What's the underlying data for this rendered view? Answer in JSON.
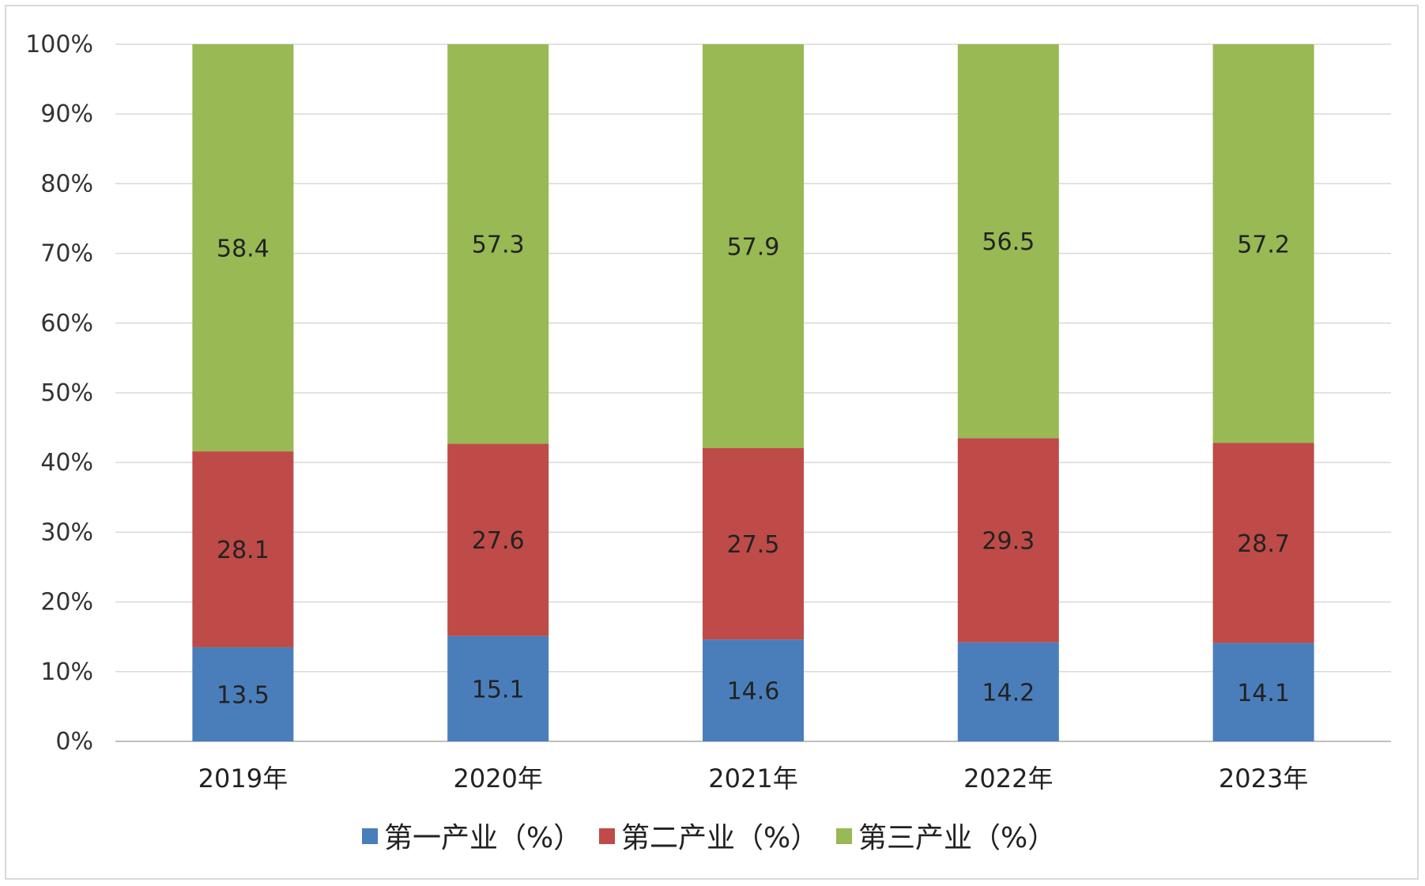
{
  "chart_data": {
    "type": "bar",
    "stacked": true,
    "percent_stacked": true,
    "categories": [
      "2019年",
      "2020年",
      "2021年",
      "2022年",
      "2023年"
    ],
    "series": [
      {
        "name": "第一产业（%）",
        "values": [
          13.5,
          15.1,
          14.6,
          14.2,
          14.1
        ],
        "color": "#4a7ebb"
      },
      {
        "name": "第二产业（%）",
        "values": [
          28.1,
          27.6,
          27.5,
          29.3,
          28.7
        ],
        "color": "#be4b48"
      },
      {
        "name": "第三产业（%）",
        "values": [
          58.4,
          57.3,
          57.9,
          56.5,
          57.2
        ],
        "color": "#98b954"
      }
    ],
    "yticks": [
      "0%",
      "10%",
      "20%",
      "30%",
      "40%",
      "50%",
      "60%",
      "70%",
      "80%",
      "90%",
      "100%"
    ],
    "ylim": [
      0,
      100
    ],
    "grid": true,
    "legend_position": "bottom"
  }
}
